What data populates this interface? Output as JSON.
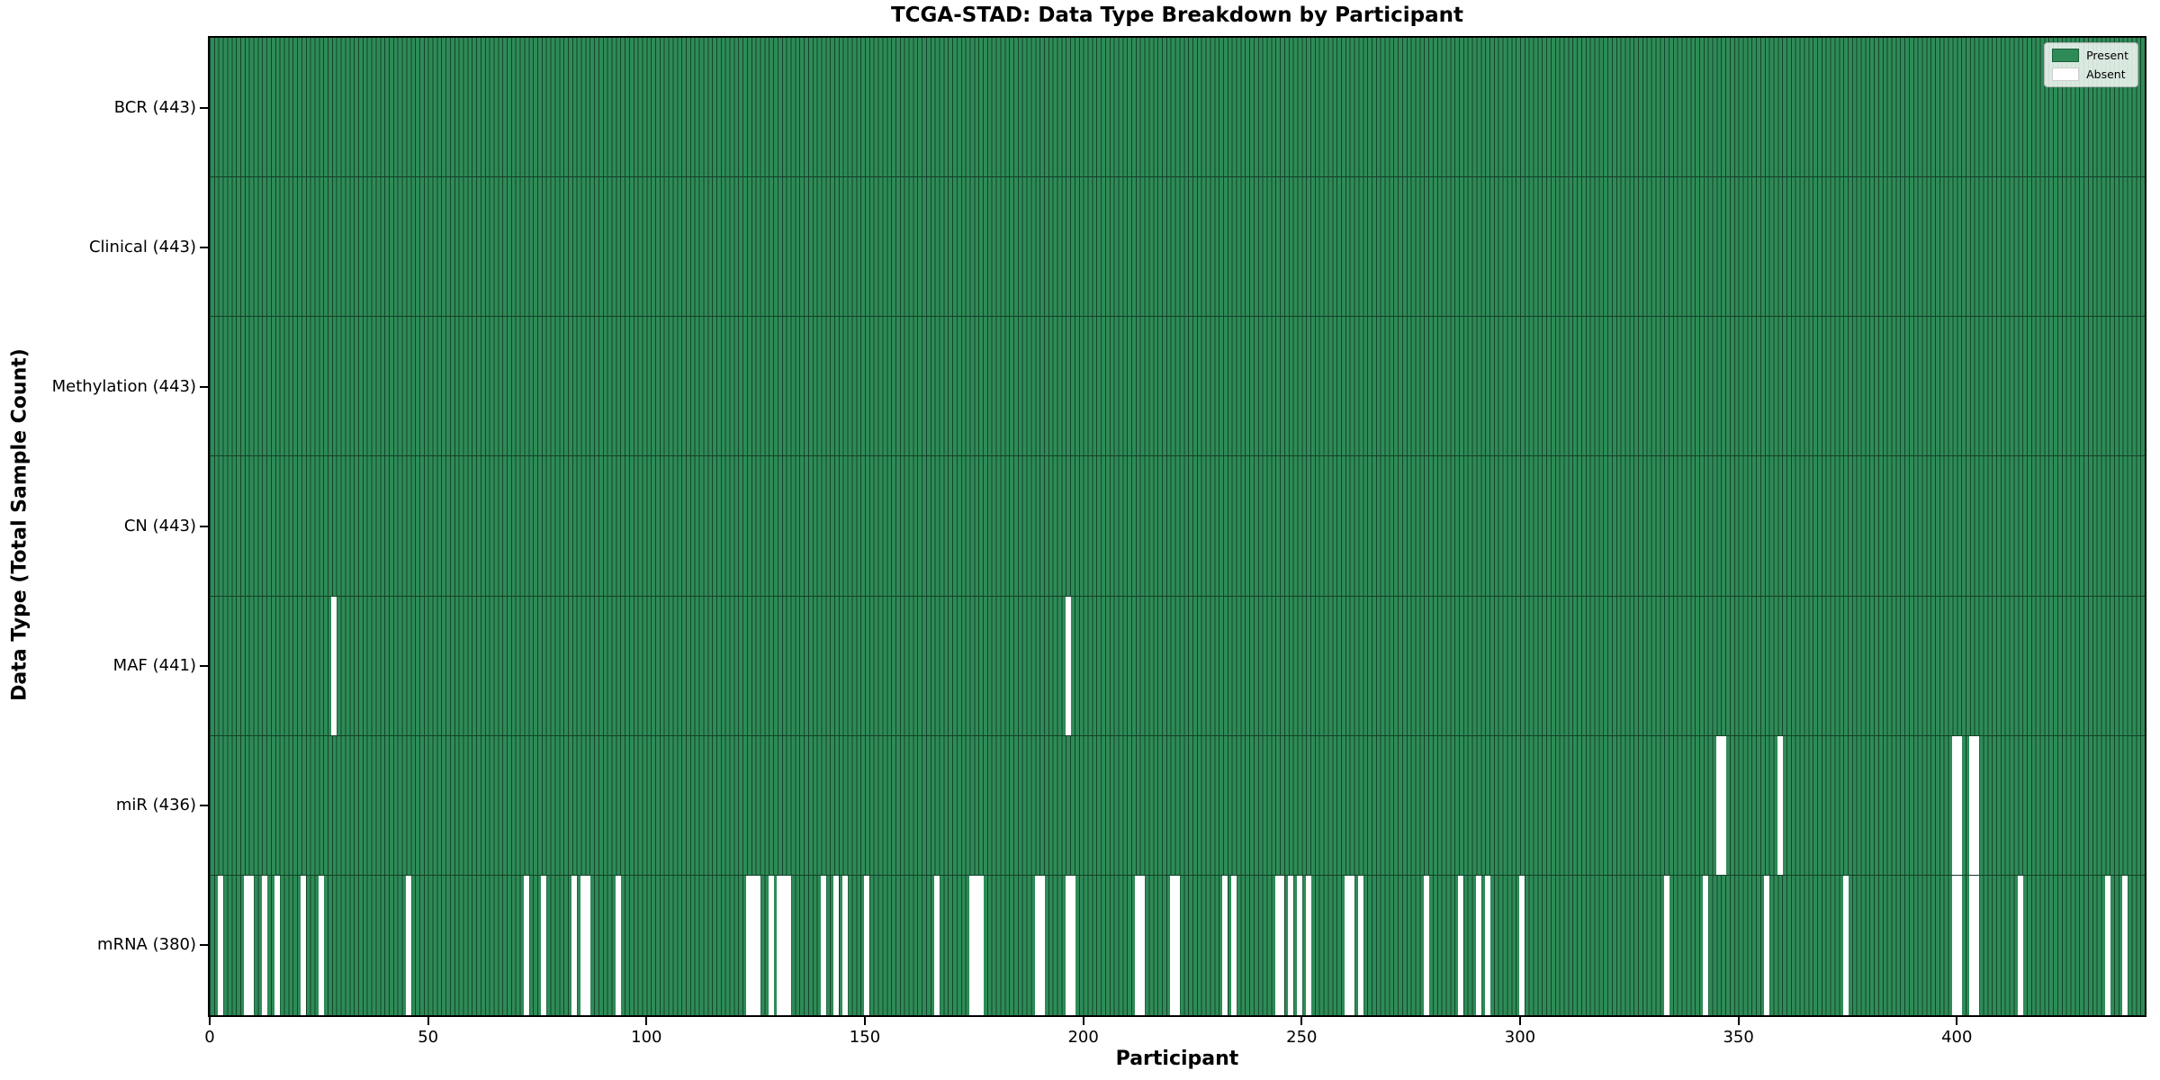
{
  "colors": {
    "present": "#2e8b57",
    "absent": "#ffffff",
    "bar_edge": "#14432a",
    "row_separator": "#143f28",
    "axis_spine": "#000000",
    "legend_border": "#b3b3b3"
  },
  "legend": {
    "labels": [
      "Present",
      "Absent"
    ]
  },
  "chart_data": {
    "type": "heatmap",
    "title": "TCGA-STAD: Data Type Breakdown by Participant",
    "xlabel": "Participant",
    "ylabel": "Data Type (Total Sample Count)",
    "legend_labels": [
      "Present",
      "Absent"
    ],
    "legend_position": "upper right",
    "grid": false,
    "x_range": [
      0,
      443
    ],
    "total_participants": 443,
    "x_ticks": [
      0,
      50,
      100,
      150,
      200,
      250,
      300,
      350,
      400
    ],
    "value_encoding": {
      "present": 1,
      "absent": 0
    },
    "rows": [
      {
        "data_type": "BCR",
        "label": "BCR (443)",
        "present_count": 443,
        "absent_participants": []
      },
      {
        "data_type": "Clinical",
        "label": "Clinical (443)",
        "present_count": 443,
        "absent_participants": []
      },
      {
        "data_type": "Methylation",
        "label": "Methylation (443)",
        "present_count": 443,
        "absent_participants": []
      },
      {
        "data_type": "CN",
        "label": "CN (443)",
        "present_count": 443,
        "absent_participants": []
      },
      {
        "data_type": "MAF",
        "label": "MAF (441)",
        "present_count": 441,
        "absent_participants": [
          28,
          196
        ]
      },
      {
        "data_type": "miR",
        "label": "miR (436)",
        "present_count": 436,
        "absent_participants": [
          345,
          346,
          359,
          399,
          400,
          403,
          404
        ]
      },
      {
        "data_type": "mRNA",
        "label": "mRNA (380)",
        "present_count": 380,
        "absent_participants": [
          2,
          8,
          9,
          12,
          15,
          21,
          25,
          45,
          72,
          76,
          83,
          85,
          86,
          93,
          123,
          124,
          125,
          128,
          130,
          131,
          132,
          140,
          143,
          145,
          150,
          166,
          174,
          175,
          176,
          189,
          190,
          196,
          197,
          212,
          213,
          220,
          221,
          232,
          234,
          244,
          245,
          247,
          249,
          251,
          260,
          261,
          263,
          278,
          286,
          290,
          292,
          300,
          333,
          342,
          356,
          374,
          399,
          400,
          403,
          404,
          414,
          434,
          438
        ]
      }
    ]
  }
}
